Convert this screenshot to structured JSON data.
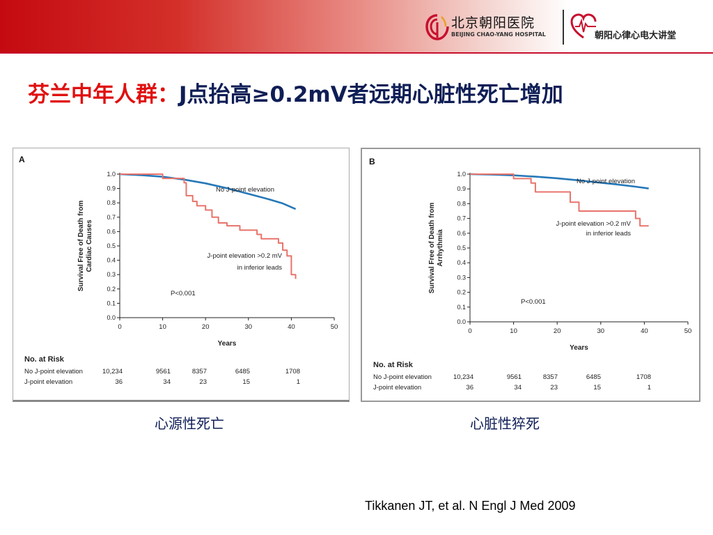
{
  "header": {
    "hospital_name_cn": "北京朝阳医院",
    "hospital_name_en": "BEIJING CHAO-YANG HOSPITAL",
    "lecture_name": "朝阳心律心电大讲堂",
    "colors": {
      "bar": "#c40a10",
      "logo_red": "#c8102e"
    },
    "icons": [
      "hospital-logo-icon",
      "heart-ecg-logo-icon"
    ]
  },
  "slide": {
    "title_red": "芬兰中年人群：",
    "title_blue": "J点抬高≥0.2mV者远期心脏性死亡增加",
    "caption_a": "心源性死亡",
    "caption_b": "心脏性猝死",
    "reference": "Tikkanen JT, et al. N Engl J Med 2009",
    "colors": {
      "title_red": "#e01010",
      "title_blue": "#0f1e56"
    }
  },
  "chart_data": [
    {
      "panel": "A",
      "type": "line",
      "ylabel": "Survival Free of Death from\nCardiac Causes",
      "xlabel": "Years",
      "xlim": [
        0,
        50
      ],
      "ylim": [
        0.0,
        1.0
      ],
      "xticks": [
        0,
        10,
        20,
        30,
        40,
        50
      ],
      "yticks": [
        0.0,
        0.1,
        0.2,
        0.3,
        0.4,
        0.5,
        0.6,
        0.7,
        0.8,
        0.9,
        1.0
      ],
      "grid": false,
      "annotation": "P<0.001",
      "series": [
        {
          "name": "No J-point elevation",
          "color": "#2678b8",
          "style": "curve",
          "label_lines": [
            "No J-point elevation"
          ],
          "x": [
            0,
            5,
            10,
            15,
            20,
            25,
            30,
            35,
            38,
            41
          ],
          "y": [
            1.0,
            0.993,
            0.982,
            0.962,
            0.936,
            0.902,
            0.863,
            0.823,
            0.796,
            0.757
          ]
        },
        {
          "name": "J-point elevation >0.2 mV in inferior leads",
          "color": "#e8736b",
          "style": "step",
          "label_lines": [
            "J-point elevation >0.2 mV",
            "in inferior leads"
          ],
          "x": [
            0,
            10,
            15,
            15.5,
            17,
            18,
            20,
            21.5,
            23,
            25,
            28,
            29,
            32,
            33,
            35,
            37,
            38,
            39,
            40,
            41
          ],
          "y": [
            1.0,
            0.97,
            0.94,
            0.85,
            0.81,
            0.78,
            0.75,
            0.7,
            0.66,
            0.64,
            0.61,
            0.61,
            0.58,
            0.55,
            0.55,
            0.52,
            0.47,
            0.43,
            0.3,
            0.27
          ]
        }
      ],
      "risk_table": {
        "title": "No. at Risk",
        "rows": [
          {
            "label": "No J-point elevation",
            "values": [
              "10,234",
              "9561",
              "8357",
              "6485",
              "1708"
            ]
          },
          {
            "label": "J-point elevation",
            "values": [
              "36",
              "34",
              "23",
              "15",
              "1"
            ]
          }
        ]
      }
    },
    {
      "panel": "B",
      "type": "line",
      "ylabel": "Survival Free of Death from\nArrhythmia",
      "xlabel": "Years",
      "xlim": [
        0,
        50
      ],
      "ylim": [
        0.0,
        1.0
      ],
      "xticks": [
        0,
        10,
        20,
        30,
        40,
        50
      ],
      "yticks": [
        0.0,
        0.1,
        0.2,
        0.3,
        0.4,
        0.5,
        0.6,
        0.7,
        0.8,
        0.9,
        1.0
      ],
      "grid": false,
      "annotation": "P<0.001",
      "series": [
        {
          "name": "No J-point elevation",
          "color": "#2678b8",
          "style": "curve",
          "label_lines": [
            "No J-point elevation"
          ],
          "x": [
            0,
            5,
            10,
            15,
            20,
            25,
            30,
            35,
            38,
            41
          ],
          "y": [
            1.0,
            0.997,
            0.992,
            0.983,
            0.972,
            0.958,
            0.942,
            0.926,
            0.915,
            0.903
          ]
        },
        {
          "name": "J-point elevation >0.2 mV in inferior leads",
          "color": "#e8736b",
          "style": "step",
          "label_lines": [
            "J-point elevation >0.2 mV",
            "in inferior leads"
          ],
          "x": [
            0,
            10,
            14,
            15,
            23,
            24,
            25,
            38,
            39,
            41
          ],
          "y": [
            1.0,
            0.97,
            0.94,
            0.88,
            0.81,
            0.81,
            0.75,
            0.7,
            0.65,
            0.65
          ]
        }
      ],
      "risk_table": {
        "title": "No. at Risk",
        "rows": [
          {
            "label": "No J-point elevation",
            "values": [
              "10,234",
              "9561",
              "8357",
              "6485",
              "1708"
            ]
          },
          {
            "label": "J-point elevation",
            "values": [
              "36",
              "34",
              "23",
              "15",
              "1"
            ]
          }
        ]
      }
    }
  ]
}
